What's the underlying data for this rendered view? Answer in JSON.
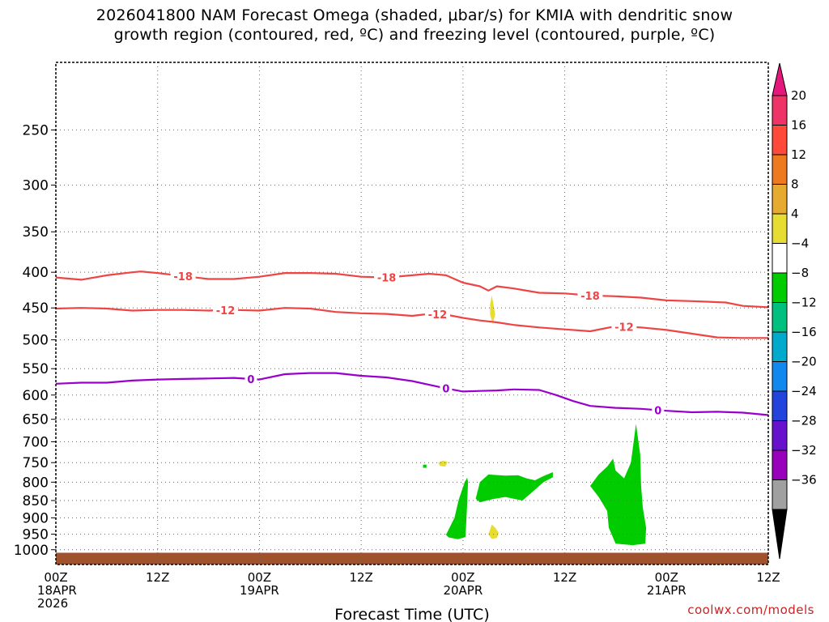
{
  "title_line1": "2026041800 NAM Forecast Omega (shaded, μbar/s) for KMIA with dendritic snow",
  "title_line2": "growth region (contoured, red, ºC) and freezing level (contoured, purple, ºC)",
  "credit": "coolwx.com/models",
  "chart_data": {
    "type": "time-height cross section",
    "xlabel": "Forecast Time (UTC)",
    "ylabel": "",
    "x_range_hours": [
      0,
      84
    ],
    "y_range_hpa": [
      200,
      1050
    ],
    "grid": true,
    "pressure_ticks": [
      250,
      300,
      350,
      400,
      450,
      500,
      550,
      600,
      650,
      700,
      750,
      800,
      850,
      900,
      950,
      1000
    ],
    "time_ticks": [
      {
        "hour": 0,
        "lines": [
          "00Z",
          "18APR",
          "2026"
        ]
      },
      {
        "hour": 12,
        "lines": [
          "12Z"
        ]
      },
      {
        "hour": 24,
        "lines": [
          "00Z",
          "19APR"
        ]
      },
      {
        "hour": 36,
        "lines": [
          "12Z"
        ]
      },
      {
        "hour": 48,
        "lines": [
          "00Z",
          "20APR"
        ]
      },
      {
        "hour": 60,
        "lines": [
          "12Z"
        ]
      },
      {
        "hour": 72,
        "lines": [
          "00Z",
          "21APR"
        ]
      },
      {
        "hour": 84,
        "lines": [
          "12Z"
        ]
      }
    ],
    "contours": [
      {
        "label": "-18",
        "color": "#ee4444",
        "label_at_hours": [
          15,
          39,
          63
        ],
        "points": [
          [
            0,
            407
          ],
          [
            3,
            410
          ],
          [
            6,
            404
          ],
          [
            9,
            400
          ],
          [
            10,
            399
          ],
          [
            12,
            401
          ],
          [
            15,
            405
          ],
          [
            18,
            409
          ],
          [
            21,
            409
          ],
          [
            24,
            406
          ],
          [
            27,
            401
          ],
          [
            30,
            401
          ],
          [
            33,
            402
          ],
          [
            36,
            406
          ],
          [
            39,
            407
          ],
          [
            42,
            404
          ],
          [
            44,
            402
          ],
          [
            46,
            404
          ],
          [
            48,
            414
          ],
          [
            50,
            419
          ],
          [
            51,
            425
          ],
          [
            52,
            419
          ],
          [
            54,
            422
          ],
          [
            57,
            428
          ],
          [
            60,
            429
          ],
          [
            63,
            432
          ],
          [
            66,
            433
          ],
          [
            69,
            435
          ],
          [
            72,
            439
          ],
          [
            75,
            440
          ],
          [
            77,
            441
          ],
          [
            79,
            442
          ],
          [
            81,
            447
          ],
          [
            84,
            449
          ]
        ]
      },
      {
        "label": "-12",
        "color": "#ee4444",
        "label_at_hours": [
          20,
          45,
          67
        ],
        "points": [
          [
            0,
            451
          ],
          [
            3,
            450
          ],
          [
            6,
            451
          ],
          [
            9,
            454
          ],
          [
            12,
            453
          ],
          [
            15,
            453
          ],
          [
            18,
            454
          ],
          [
            21,
            453
          ],
          [
            24,
            454
          ],
          [
            27,
            450
          ],
          [
            30,
            451
          ],
          [
            33,
            456
          ],
          [
            36,
            458
          ],
          [
            39,
            459
          ],
          [
            42,
            462
          ],
          [
            44,
            459
          ],
          [
            46,
            460
          ],
          [
            48,
            465
          ],
          [
            50,
            469
          ],
          [
            52,
            472
          ],
          [
            54,
            476
          ],
          [
            57,
            480
          ],
          [
            60,
            483
          ],
          [
            63,
            486
          ],
          [
            66,
            478
          ],
          [
            69,
            480
          ],
          [
            72,
            484
          ],
          [
            75,
            490
          ],
          [
            78,
            496
          ],
          [
            81,
            497
          ],
          [
            84,
            497
          ]
        ]
      },
      {
        "label": "0",
        "color": "#9900cc",
        "label_at_hours": [
          23,
          46,
          71
        ],
        "points": [
          [
            0,
            578
          ],
          [
            3,
            576
          ],
          [
            6,
            576
          ],
          [
            9,
            572
          ],
          [
            12,
            570
          ],
          [
            15,
            569
          ],
          [
            18,
            568
          ],
          [
            21,
            567
          ],
          [
            24,
            570
          ],
          [
            27,
            560
          ],
          [
            30,
            558
          ],
          [
            33,
            558
          ],
          [
            36,
            563
          ],
          [
            39,
            566
          ],
          [
            42,
            573
          ],
          [
            44,
            580
          ],
          [
            46,
            587
          ],
          [
            48,
            593
          ],
          [
            50,
            592
          ],
          [
            52,
            591
          ],
          [
            54,
            589
          ],
          [
            57,
            590
          ],
          [
            59,
            600
          ],
          [
            61,
            612
          ],
          [
            63,
            622
          ],
          [
            66,
            626
          ],
          [
            69,
            628
          ],
          [
            72,
            632
          ],
          [
            75,
            635
          ],
          [
            78,
            634
          ],
          [
            81,
            636
          ],
          [
            84,
            641
          ]
        ]
      }
    ],
    "omega_shaded": [
      {
        "class": "-8 to -4",
        "color": "#00cc00",
        "polygons": [
          [
            [
              43.3,
              755
            ],
            [
              43.7,
              755
            ],
            [
              43.7,
              763
            ],
            [
              43.3,
              763
            ]
          ],
          [
            [
              46.0,
              952
            ],
            [
              47.0,
              900
            ],
            [
              47.5,
              848
            ],
            [
              48.2,
              800
            ],
            [
              48.5,
              788
            ],
            [
              48.6,
              800
            ],
            [
              48.5,
              858
            ],
            [
              48.4,
              910
            ],
            [
              48.3,
              959
            ],
            [
              47.4,
              966
            ],
            [
              46.3,
              960
            ]
          ],
          [
            [
              49.5,
              845
            ],
            [
              50.0,
              800
            ],
            [
              51.0,
              780
            ],
            [
              53.0,
              783
            ],
            [
              54.5,
              782
            ],
            [
              55.5,
              790
            ],
            [
              56.5,
              795
            ],
            [
              57.5,
              784
            ],
            [
              58.6,
              774
            ],
            [
              58.6,
              787
            ],
            [
              57.5,
              800
            ],
            [
              56.0,
              830
            ],
            [
              55.0,
              850
            ],
            [
              53.0,
              840
            ],
            [
              51.5,
              846
            ],
            [
              50.0,
              855
            ]
          ],
          [
            [
              63.0,
              810
            ],
            [
              64.0,
              780
            ],
            [
              65.0,
              760
            ],
            [
              65.7,
              740
            ],
            [
              66.0,
              770
            ],
            [
              67.0,
              790
            ],
            [
              67.8,
              750
            ],
            [
              68.4,
              660
            ],
            [
              68.9,
              730
            ],
            [
              69.0,
              810
            ],
            [
              69.2,
              870
            ],
            [
              69.6,
              930
            ],
            [
              69.5,
              980
            ],
            [
              68.0,
              985
            ],
            [
              66.0,
              980
            ],
            [
              65.2,
              930
            ],
            [
              65.0,
              880
            ],
            [
              64.0,
              840
            ]
          ]
        ]
      },
      {
        "class": "4 to 8",
        "color": "#e6dc32",
        "polygons": [
          [
            [
              45.1,
              750
            ],
            [
              45.6,
              745
            ],
            [
              46.2,
              748
            ],
            [
              45.9,
              760
            ],
            [
              45.3,
              758
            ]
          ],
          [
            [
              51.4,
              432
            ],
            [
              51.6,
              445
            ],
            [
              51.8,
              460
            ],
            [
              51.5,
              474
            ],
            [
              51.2,
              460
            ],
            [
              51.2,
              445
            ]
          ],
          [
            [
              51.0,
              950
            ],
            [
              51.4,
              920
            ],
            [
              51.8,
              930
            ],
            [
              52.2,
              945
            ],
            [
              52.0,
              962
            ],
            [
              51.4,
              965
            ]
          ]
        ]
      }
    ],
    "terrain": {
      "color": "#a0522d",
      "from_hpa": 1010,
      "to_hpa": 1050
    },
    "colorbar": {
      "labels": [
        "20",
        "16",
        "12",
        "8",
        "4",
        "−4",
        "−8",
        "−12",
        "−16",
        "−20",
        "−24",
        "−28",
        "−32",
        "−36"
      ],
      "colors": [
        "#ee3366",
        "#ff4a3a",
        "#ee7a20",
        "#e6aa30",
        "#e6dc32",
        "#ffffff",
        "#00cc00",
        "#00c080",
        "#00aacc",
        "#1188ee",
        "#2244dd",
        "#6611cc",
        "#9900bb",
        "#a0a0a0"
      ],
      "top_arrow_color": "#e6177a",
      "bottom_arrow_color": "#000000"
    }
  }
}
